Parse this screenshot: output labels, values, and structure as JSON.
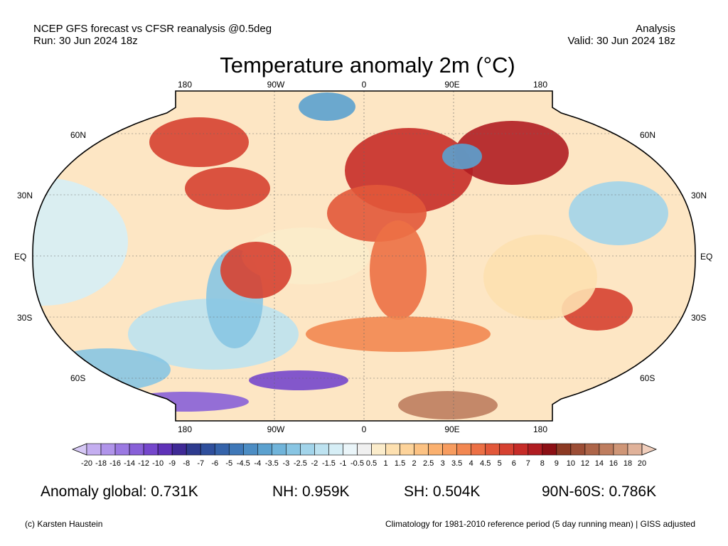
{
  "header": {
    "left_line1": "NCEP GFS forecast vs CFSR reanalysis @0.5deg",
    "left_line2": "Run: 30 Jun 2024 18z",
    "right_line1": "Analysis",
    "right_line2": "Valid: 30 Jun 2024 18z"
  },
  "title": "Temperature anomaly 2m (°C)",
  "map": {
    "projection": "Robinson",
    "lon_labels": [
      "180",
      "90W",
      "0",
      "90E",
      "180"
    ],
    "lat_labels": [
      "60N",
      "30N",
      "EQ",
      "30S",
      "60S"
    ]
  },
  "colorbar": {
    "labels": [
      "-20",
      "-18",
      "-16",
      "-14",
      "-12",
      "-10",
      "-9",
      "-8",
      "-7",
      "-6",
      "-5",
      "-4.5",
      "-4",
      "-3.5",
      "-3",
      "-2.5",
      "-2",
      "-1.5",
      "-1",
      "-0.5",
      "0.5",
      "1",
      "1.5",
      "2",
      "2.5",
      "3",
      "3.5",
      "4",
      "4.5",
      "5",
      "6",
      "7",
      "8",
      "9",
      "10",
      "12",
      "14",
      "16",
      "18",
      "20"
    ],
    "colors": [
      "#d6c8f5",
      "#c4aef0",
      "#b094ea",
      "#9b79e2",
      "#8860d8",
      "#7547cc",
      "#5f32b8",
      "#3f2a96",
      "#2e3b8e",
      "#2f4f9c",
      "#3563aa",
      "#3f78b8",
      "#4c8dc4",
      "#5ba1cf",
      "#70b4da",
      "#88c5e3",
      "#a2d4ea",
      "#bde2f0",
      "#d6eef6",
      "#eaf5f9",
      "#f0f0f0",
      "#fbeccb",
      "#fde0b0",
      "#fdd39a",
      "#fcc283",
      "#fab06f",
      "#f79c5f",
      "#f28751",
      "#ec7045",
      "#e2583a",
      "#d64131",
      "#c62c28",
      "#b01d22",
      "#8c1015",
      "#8c3a24",
      "#9c4e36",
      "#ad6549",
      "#be7d5f",
      "#cf9677",
      "#e0b29a",
      "#f1cfbd"
    ]
  },
  "stats": {
    "global": "Anomaly global: 0.731K",
    "nh": "NH: 0.959K",
    "sh": "SH: 0.504K",
    "arctic": "90N-60S: 0.786K"
  },
  "footer": {
    "left": "(c) Karsten Haustein",
    "right": "Climatology for 1981-2010 reference period (5 day running mean) | GISS adjusted"
  }
}
